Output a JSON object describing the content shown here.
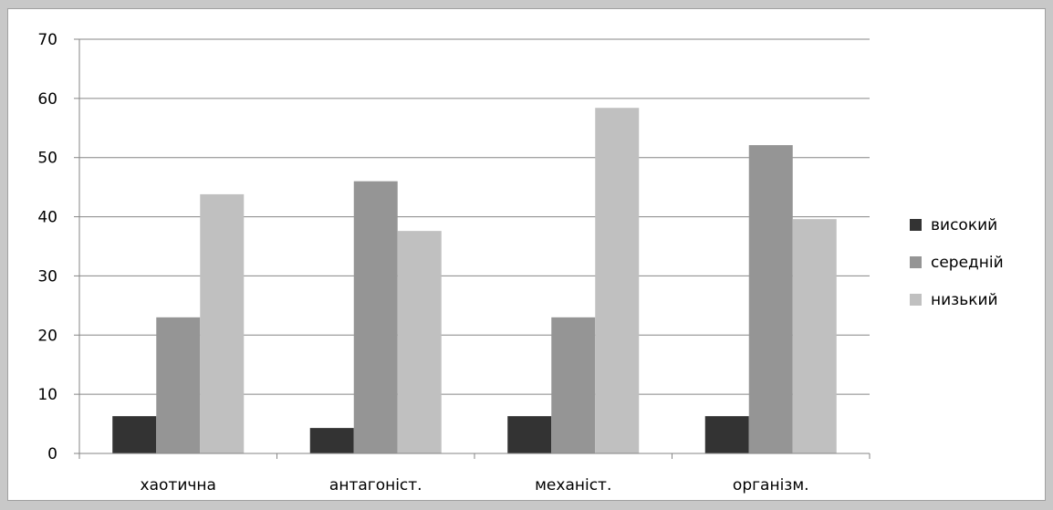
{
  "chart_data": {
    "type": "bar",
    "categories": [
      "хаотична",
      "антагоніст.",
      "механіст.",
      "організм."
    ],
    "series": [
      {
        "name": "високий",
        "values": [
          6.3,
          4.3,
          6.3,
          6.3
        ],
        "color": "#333333"
      },
      {
        "name": "середній",
        "values": [
          23,
          46,
          23,
          52.1
        ],
        "color": "#959595"
      },
      {
        "name": "низький",
        "values": [
          43.8,
          37.6,
          58.4,
          39.6
        ],
        "color": "#c0c0c0"
      }
    ],
    "ylim": [
      0,
      70
    ],
    "yticks": [
      0,
      10,
      20,
      30,
      40,
      50,
      60,
      70
    ],
    "grid": true,
    "legend": "right"
  }
}
